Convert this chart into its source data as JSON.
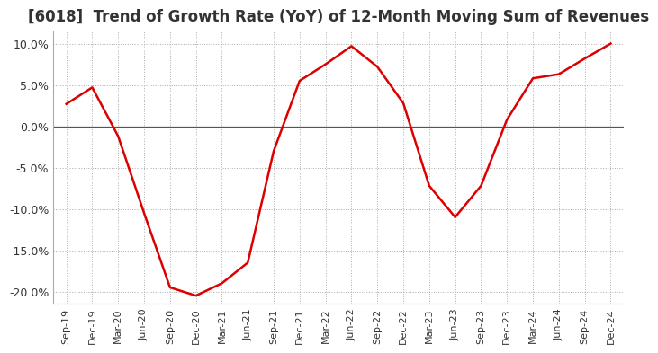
{
  "title": "[6018]  Trend of Growth Rate (YoY) of 12-Month Moving Sum of Revenues",
  "title_fontsize": 12,
  "background_color": "#ffffff",
  "line_color": "#dd0000",
  "grid_color": "#aaaaaa",
  "ylim": [
    -0.215,
    0.115
  ],
  "yticks": [
    0.1,
    0.05,
    0.0,
    -0.05,
    -0.1,
    -0.15,
    -0.2
  ],
  "ytick_labels": [
    "10.0%",
    "5.0%",
    "0.0%",
    "-5.0%",
    "-10.0%",
    "-15.0%",
    "-20.0%"
  ],
  "x_labels": [
    "Sep-19",
    "Dec-19",
    "Mar-20",
    "Jun-20",
    "Sep-20",
    "Dec-20",
    "Mar-21",
    "Jun-21",
    "Sep-21",
    "Dec-21",
    "Mar-22",
    "Jun-22",
    "Sep-22",
    "Dec-22",
    "Mar-23",
    "Jun-23",
    "Sep-23",
    "Dec-23",
    "Mar-24",
    "Jun-24",
    "Sep-24",
    "Dec-24"
  ],
  "y_values": [
    0.027,
    0.047,
    -0.012,
    -0.105,
    -0.195,
    -0.205,
    -0.19,
    -0.165,
    -0.03,
    0.055,
    0.075,
    0.097,
    0.072,
    0.028,
    -0.072,
    -0.11,
    -0.072,
    0.008,
    0.058,
    0.063,
    0.082,
    0.1
  ]
}
